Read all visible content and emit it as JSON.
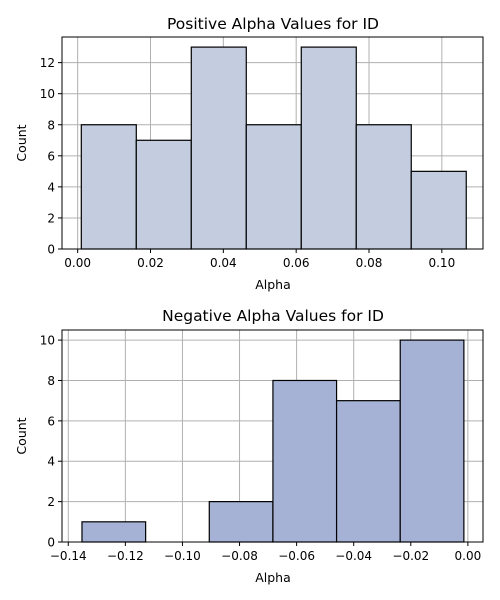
{
  "chart_data": [
    {
      "type": "bar",
      "title": "Positive Alpha Values for ID",
      "xlabel": "Alpha",
      "ylabel": "Count",
      "bin_edges": [
        0.001,
        0.0161,
        0.0312,
        0.0463,
        0.0614,
        0.0765,
        0.0916,
        0.1067
      ],
      "values": [
        8,
        7,
        13,
        8,
        13,
        8,
        5
      ],
      "xlim": [
        -0.0043,
        0.1113
      ],
      "ylim": [
        0,
        13.65
      ],
      "xticks": [
        0.0,
        0.02,
        0.04,
        0.06,
        0.08,
        0.1
      ],
      "xtick_labels": [
        "0.00",
        "0.02",
        "0.04",
        "0.06",
        "0.08",
        "0.10"
      ],
      "yticks": [
        0,
        2,
        4,
        6,
        8,
        10,
        12
      ],
      "ytick_labels": [
        "0",
        "2",
        "4",
        "6",
        "8",
        "10",
        "12"
      ],
      "grid": true,
      "bar_color": "#c4cde0"
    },
    {
      "type": "bar",
      "title": "Negative Alpha Values for ID",
      "xlabel": "Alpha",
      "ylabel": "Count",
      "bin_edges": [
        -0.1352,
        -0.1129,
        -0.0906,
        -0.0683,
        -0.046,
        -0.0237,
        -0.0014
      ],
      "values": [
        1,
        0,
        2,
        8,
        7,
        10
      ],
      "xlim": [
        -0.1422,
        0.0053
      ],
      "ylim": [
        0,
        10.5
      ],
      "xticks": [
        -0.14,
        -0.12,
        -0.1,
        -0.08,
        -0.06,
        -0.04,
        -0.02,
        0.0
      ],
      "xtick_labels": [
        "−0.14",
        "−0.12",
        "−0.10",
        "−0.08",
        "−0.06",
        "−0.04",
        "−0.02",
        "0.00"
      ],
      "yticks": [
        0,
        2,
        4,
        6,
        8,
        10
      ],
      "ytick_labels": [
        "0",
        "2",
        "4",
        "6",
        "8",
        "10"
      ],
      "grid": true,
      "bar_color": "#a5b2d5"
    }
  ]
}
